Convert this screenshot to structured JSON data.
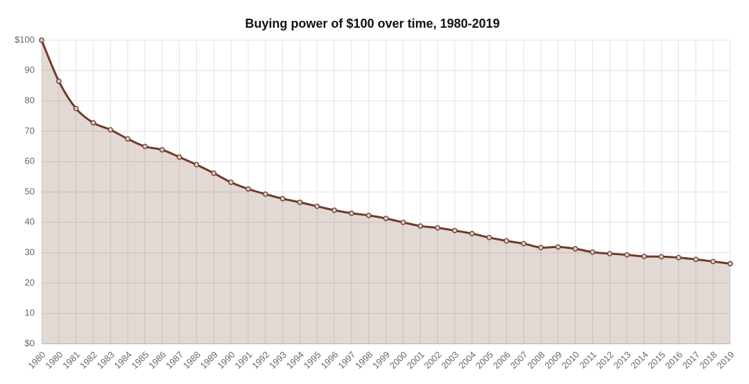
{
  "chart_data": {
    "type": "line",
    "title": "Buying power of $100 over time, 1980-2019",
    "categories": [
      "1980",
      "1980",
      "1981",
      "1982",
      "1983",
      "1984",
      "1985",
      "1986",
      "1987",
      "1988",
      "1989",
      "1990",
      "1991",
      "1992",
      "1993",
      "1994",
      "1995",
      "1996",
      "1997",
      "1998",
      "1999",
      "2000",
      "2001",
      "2002",
      "2003",
      "2004",
      "2005",
      "2006",
      "2007",
      "2008",
      "2009",
      "2010",
      "2011",
      "2012",
      "2013",
      "2014",
      "2015",
      "2016",
      "2017",
      "2018",
      "2019"
    ],
    "values": [
      100,
      86.5,
      77.5,
      72.8,
      70.5,
      67.5,
      65,
      63.9,
      61.5,
      59,
      56.2,
      53.2,
      51,
      49.3,
      47.8,
      46.6,
      45.3,
      44,
      43,
      42.3,
      41.3,
      40,
      38.8,
      38.2,
      37.3,
      36.3,
      35,
      33.9,
      33,
      31.7,
      31.9,
      31.3,
      30.2,
      29.7,
      29.3,
      28.8,
      28.7,
      28.4,
      27.8,
      27.1,
      26.4
    ],
    "color": "#6e3a28",
    "ylim": [
      0,
      100
    ],
    "yticks": [
      {
        "value": 0,
        "label": "$0"
      },
      10,
      20,
      30,
      40,
      50,
      60,
      70,
      80,
      90,
      {
        "value": 100,
        "label": "$100"
      }
    ],
    "grid": true
  }
}
